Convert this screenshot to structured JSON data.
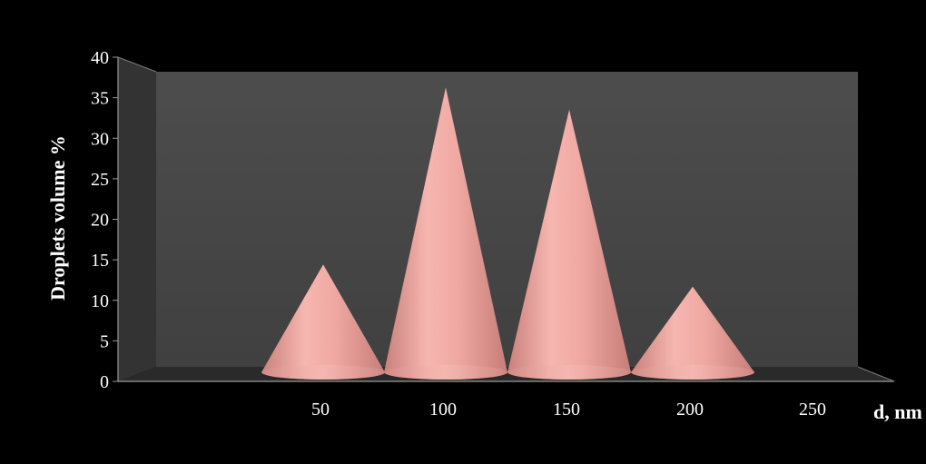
{
  "chart_data": {
    "type": "bar",
    "bar_shape": "cone",
    "three_d": true,
    "categories": [
      "50",
      "100",
      "150",
      "200",
      "250"
    ],
    "values": [
      14,
      38,
      35,
      11,
      0
    ],
    "xlabel": "d, nm",
    "ylabel": "Droplets volume  %",
    "ylim": [
      0,
      40
    ],
    "y_ticks": [
      "0",
      "5",
      "10",
      "15",
      "20",
      "25",
      "30",
      "35",
      "40"
    ],
    "grid": false,
    "legend": "none",
    "colors": {
      "background": "#000000",
      "back_wall": "#4a4a4a",
      "side_wall": "#333333",
      "floor": "#2a2a2a",
      "cone": "#f0a8a2"
    }
  }
}
